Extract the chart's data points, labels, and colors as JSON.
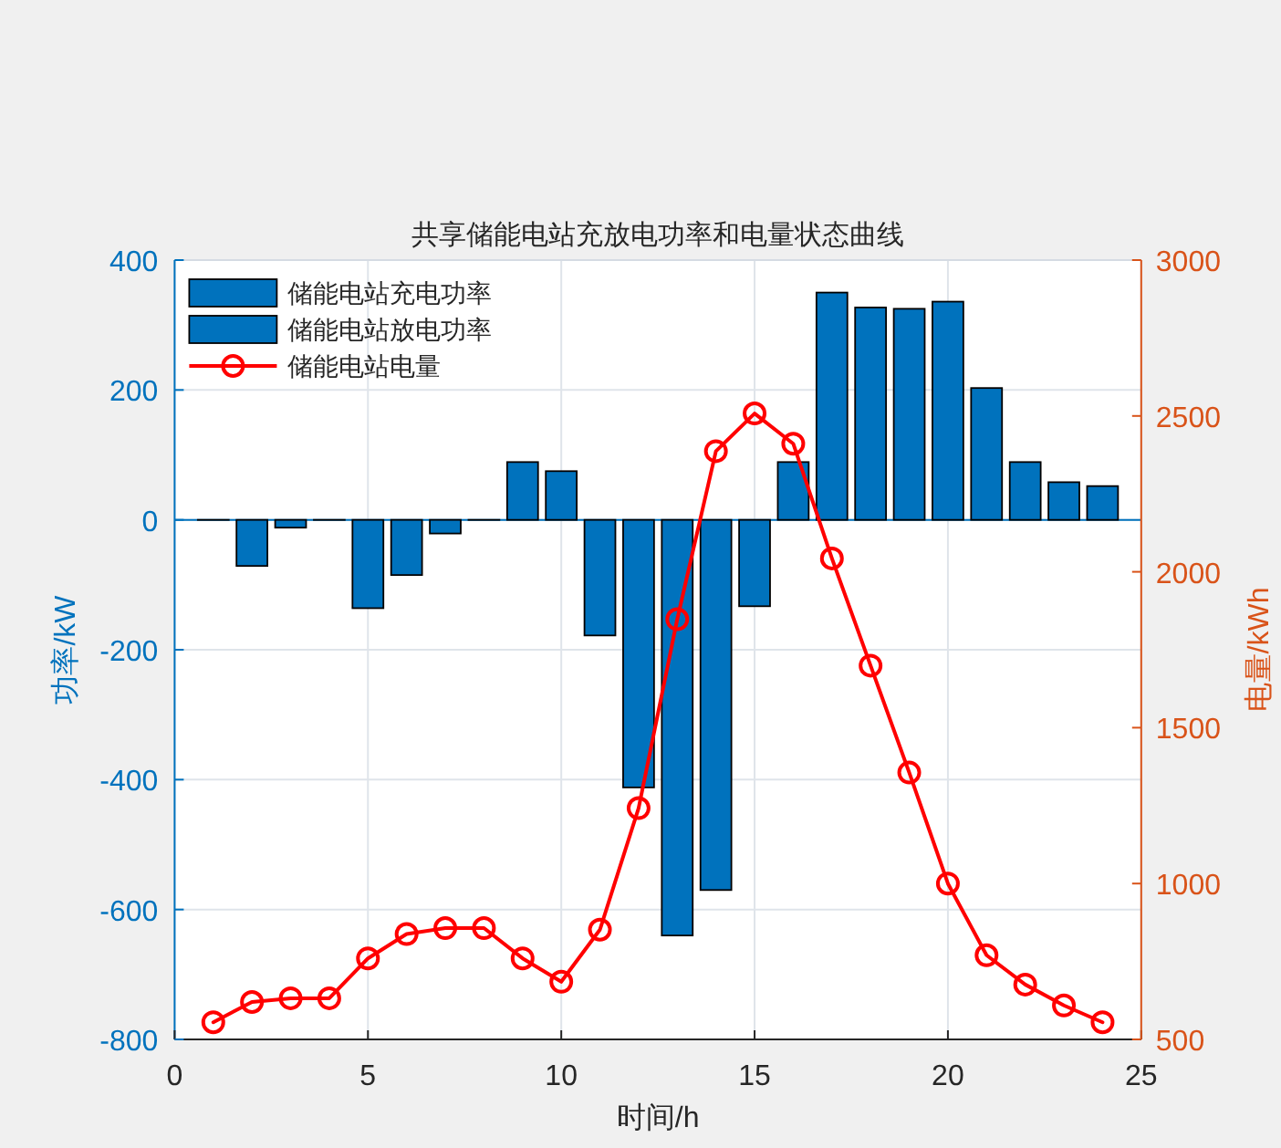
{
  "chart_data": {
    "type": "bar",
    "title": "共享储能电站充放电功率和电量状态曲线",
    "xlabel": "时间/h",
    "ylabel": "功率/kW",
    "y2label": "电量/kWh",
    "x": [
      1,
      2,
      3,
      4,
      5,
      6,
      7,
      8,
      9,
      10,
      11,
      12,
      13,
      14,
      15,
      16,
      17,
      18,
      19,
      20,
      21,
      22,
      23,
      24
    ],
    "xlim": [
      0,
      25
    ],
    "xticks": [
      0,
      5,
      10,
      15,
      20,
      25
    ],
    "ylim": [
      -800,
      400
    ],
    "yticks": [
      -800,
      -600,
      -400,
      -200,
      0,
      200,
      400
    ],
    "y2lim": [
      500,
      3000
    ],
    "y2ticks": [
      500,
      1000,
      1500,
      2000,
      2500,
      3000
    ],
    "stacked": true,
    "series": [
      {
        "name": "储能电站充电功率",
        "color": "#0072bd",
        "values": [
          0,
          -71,
          -12,
          0,
          -136,
          -85,
          -21,
          0,
          null,
          null,
          -178,
          -412,
          -640,
          -570,
          -133,
          null,
          null,
          null,
          null,
          null,
          null,
          null,
          null,
          null
        ]
      },
      {
        "name": "储能电站放电功率",
        "color": "#0072bd",
        "values": [
          null,
          null,
          null,
          null,
          null,
          null,
          null,
          null,
          89,
          75,
          null,
          null,
          null,
          null,
          null,
          89,
          350,
          327,
          325,
          336,
          203,
          89,
          58,
          52
        ]
      },
      {
        "name": "储能电站电量",
        "type": "line",
        "axis": "y2",
        "color": "#ff0000",
        "marker": "circle",
        "values": [
          555,
          620,
          632,
          632,
          760,
          838,
          857,
          857,
          760,
          685,
          852,
          1242,
          1848,
          2387,
          2508,
          2411,
          2043,
          1699,
          1356,
          1000,
          770,
          676,
          609,
          555
        ]
      }
    ],
    "ref_lines": [
      {
        "axis": "y",
        "value": 0,
        "color": "#0072bd"
      }
    ],
    "grid": true,
    "legend": "top left"
  }
}
